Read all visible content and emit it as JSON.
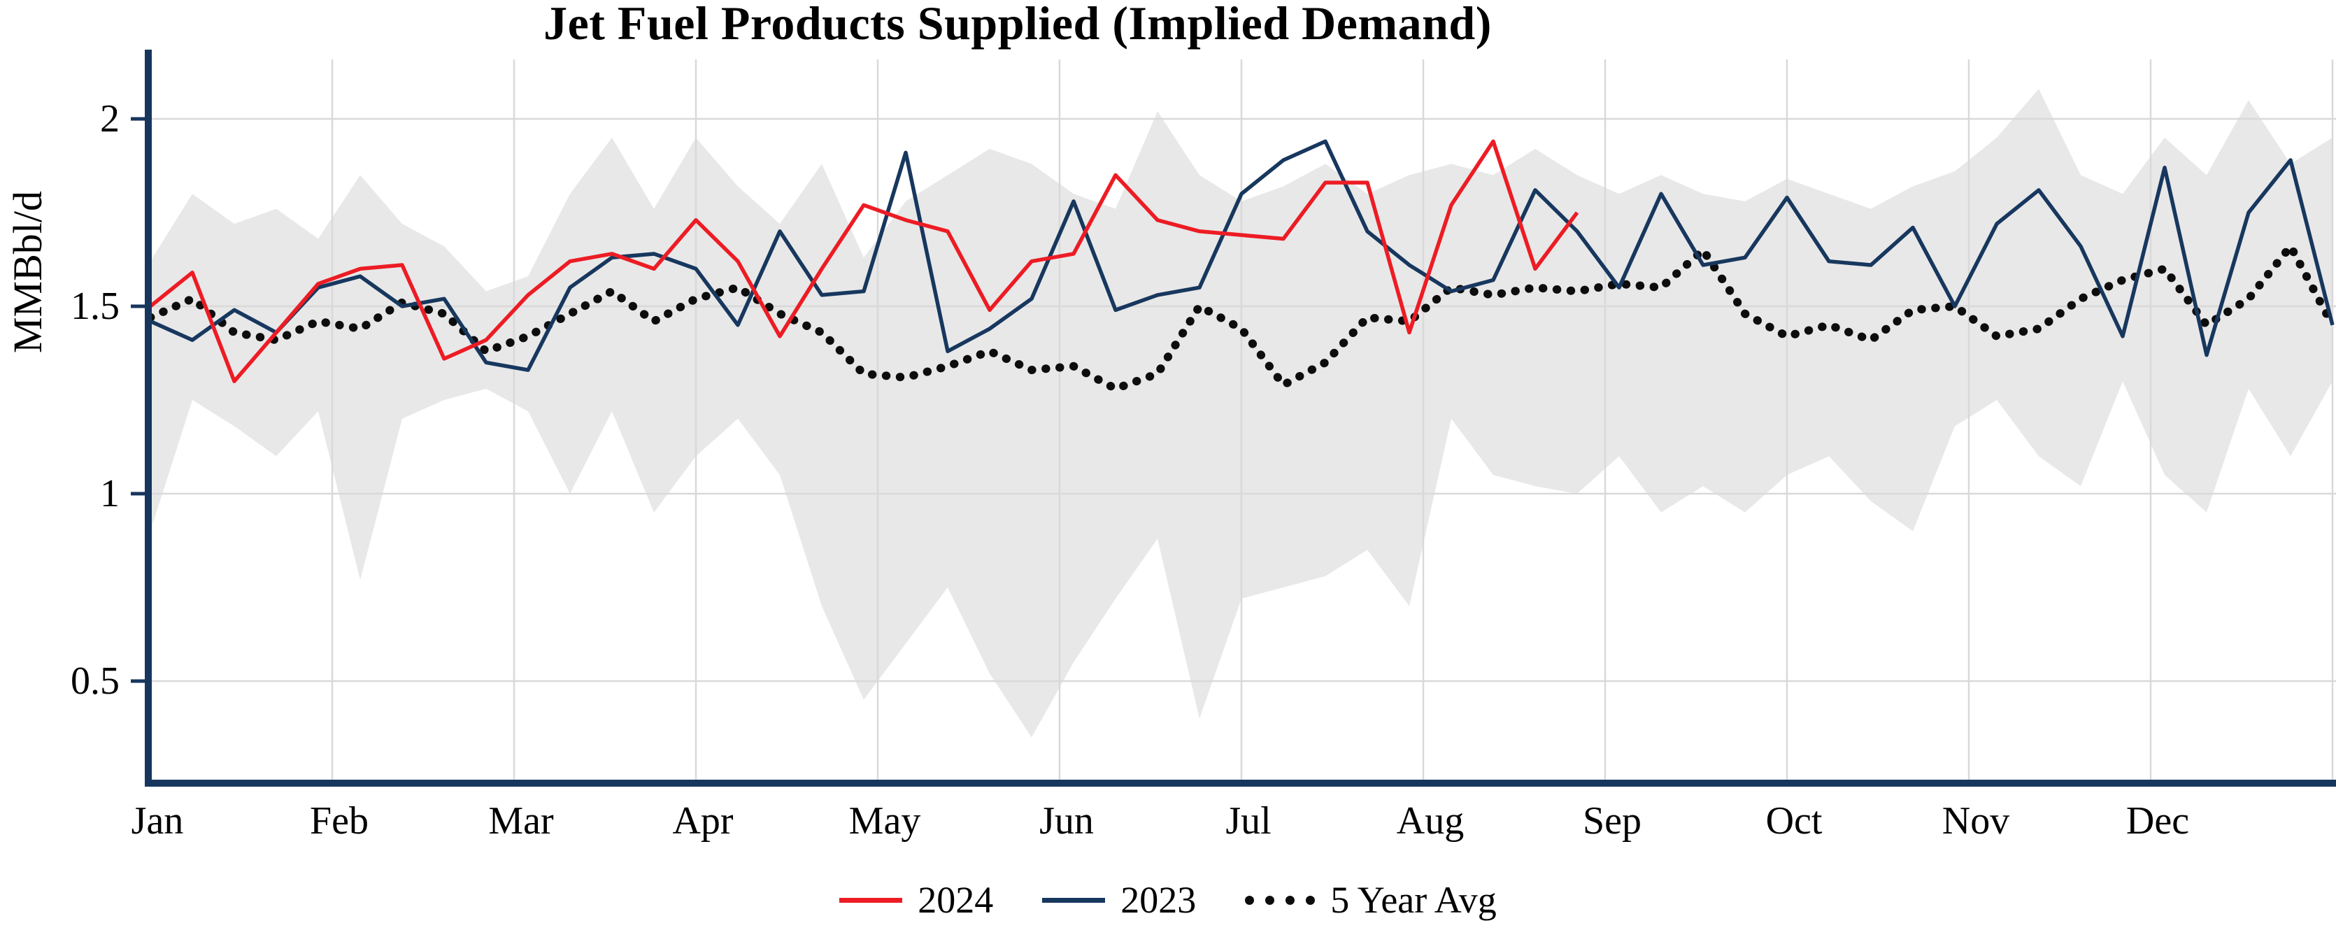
{
  "chart_data": {
    "type": "line",
    "title": "Jet Fuel Products Supplied (Implied Demand)",
    "ylabel": "MMBbl/d",
    "xlabel": "",
    "x_unit": "weekly observations, January through December",
    "weeks_per_year": 52,
    "ylim": [
      0.23,
      2.17
    ],
    "y_ticks": [
      {
        "value": 0.5,
        "label": "0.5"
      },
      {
        "value": 1.0,
        "label": "1"
      },
      {
        "value": 1.5,
        "label": "1.5"
      },
      {
        "value": 2.0,
        "label": "2"
      }
    ],
    "x_tick_labels": [
      "Jan",
      "Feb",
      "Mar",
      "Apr",
      "May",
      "Jun",
      "Jul",
      "Aug",
      "Sep",
      "Oct",
      "Nov",
      "Dec"
    ],
    "grid": true,
    "grid_color": "#d9d9d9",
    "axis_color": "#17365d",
    "legend_position": "bottom-center",
    "series": [
      {
        "name": "2024",
        "color": "#ed1c24",
        "style": "solid",
        "values": [
          1.5,
          1.59,
          1.3,
          1.43,
          1.56,
          1.6,
          1.61,
          1.36,
          1.41,
          1.53,
          1.62,
          1.64,
          1.6,
          1.73,
          1.62,
          1.42,
          1.6,
          1.77,
          1.73,
          1.7,
          1.49,
          1.62,
          1.64,
          1.85,
          1.73,
          1.7,
          1.69,
          1.68,
          1.83,
          1.83,
          1.43,
          1.77,
          1.94,
          1.6,
          1.75
        ]
      },
      {
        "name": "2023",
        "color": "#17375e",
        "style": "solid",
        "values": [
          1.46,
          1.41,
          1.49,
          1.43,
          1.55,
          1.58,
          1.5,
          1.52,
          1.35,
          1.33,
          1.55,
          1.63,
          1.64,
          1.6,
          1.45,
          1.7,
          1.53,
          1.54,
          1.91,
          1.38,
          1.44,
          1.52,
          1.78,
          1.49,
          1.53,
          1.55,
          1.8,
          1.89,
          1.94,
          1.7,
          1.61,
          1.54,
          1.57,
          1.81,
          1.7,
          1.55,
          1.8,
          1.61,
          1.63,
          1.79,
          1.62,
          1.61,
          1.71,
          1.5,
          1.72,
          1.81,
          1.66,
          1.42,
          1.87,
          1.37,
          1.75,
          1.89,
          1.45
        ]
      },
      {
        "name": "5 Year Avg",
        "color": "#0d0d0d",
        "style": "dotted",
        "values": [
          1.47,
          1.52,
          1.43,
          1.41,
          1.46,
          1.44,
          1.51,
          1.48,
          1.38,
          1.42,
          1.48,
          1.54,
          1.46,
          1.52,
          1.55,
          1.48,
          1.43,
          1.32,
          1.31,
          1.34,
          1.38,
          1.33,
          1.34,
          1.28,
          1.32,
          1.5,
          1.44,
          1.29,
          1.35,
          1.47,
          1.46,
          1.55,
          1.53,
          1.55,
          1.54,
          1.56,
          1.55,
          1.65,
          1.48,
          1.42,
          1.45,
          1.41,
          1.49,
          1.5,
          1.42,
          1.44,
          1.52,
          1.57,
          1.6,
          1.45,
          1.52,
          1.66,
          1.45
        ]
      }
    ],
    "band": {
      "name": "5-year min-max range",
      "color": "#d8d8d8",
      "opacity": 0.6,
      "upper": [
        1.62,
        1.8,
        1.72,
        1.76,
        1.68,
        1.85,
        1.72,
        1.66,
        1.54,
        1.58,
        1.8,
        1.95,
        1.76,
        1.95,
        1.82,
        1.72,
        1.88,
        1.63,
        1.78,
        1.85,
        1.92,
        1.88,
        1.8,
        1.76,
        2.02,
        1.85,
        1.78,
        1.82,
        1.88,
        1.8,
        1.85,
        1.88,
        1.85,
        1.92,
        1.85,
        1.8,
        1.85,
        1.8,
        1.78,
        1.84,
        1.8,
        1.76,
        1.82,
        1.86,
        1.95,
        2.08,
        1.85,
        1.8,
        1.95,
        1.85,
        2.05,
        1.88,
        1.95
      ],
      "lower": [
        0.9,
        1.25,
        1.18,
        1.1,
        1.22,
        0.77,
        1.2,
        1.25,
        1.28,
        1.22,
        1.0,
        1.22,
        0.95,
        1.1,
        1.2,
        1.05,
        0.7,
        0.45,
        0.6,
        0.75,
        0.52,
        0.35,
        0.55,
        0.72,
        0.88,
        0.4,
        0.72,
        0.75,
        0.78,
        0.85,
        0.7,
        1.2,
        1.05,
        1.02,
        1.0,
        1.1,
        0.95,
        1.02,
        0.95,
        1.05,
        1.1,
        0.98,
        0.9,
        1.18,
        1.25,
        1.1,
        1.02,
        1.3,
        1.05,
        0.95,
        1.28,
        1.1,
        1.3
      ]
    }
  }
}
